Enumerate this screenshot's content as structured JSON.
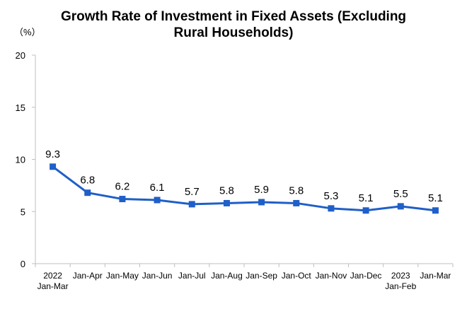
{
  "chart_data": {
    "type": "line",
    "title_line1": "Growth Rate of Investment in Fixed Assets (Excluding",
    "title_line2": "Rural Households)",
    "unit_label": "（%）",
    "categories": [
      [
        "2022",
        "Jan-Mar"
      ],
      [
        "Jan-Apr"
      ],
      [
        "Jan-May"
      ],
      [
        "Jan-Jun"
      ],
      [
        "Jan-Jul"
      ],
      [
        "Jan-Aug"
      ],
      [
        "Jan-Sep"
      ],
      [
        "Jan-Oct"
      ],
      [
        "Jan-Nov"
      ],
      [
        "Jan-Dec"
      ],
      [
        "2023",
        "Jan-Feb"
      ],
      [
        "Jan-Mar"
      ]
    ],
    "values": [
      9.3,
      6.8,
      6.2,
      6.1,
      5.7,
      5.8,
      5.9,
      5.8,
      5.3,
      5.1,
      5.5,
      5.1
    ],
    "data_labels": [
      "9.3",
      "6.8",
      "6.2",
      "6.1",
      "5.7",
      "5.8",
      "5.9",
      "5.8",
      "5.3",
      "5.1",
      "5.5",
      "5.1"
    ],
    "ylim": [
      0,
      20
    ],
    "yticks": [
      "0",
      "5",
      "10",
      "15",
      "20"
    ],
    "grid": false,
    "line_color": "#1f5fc8",
    "marker_color": "#1f5fc8",
    "axis_color": "#bfbfbf"
  }
}
